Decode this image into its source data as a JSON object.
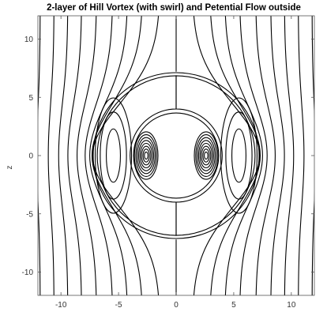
{
  "chart_data": {
    "type": "contour",
    "title": "2-layer of Hill Vortex (with swirl) and Petential Flow outside",
    "xlabel": "",
    "ylabel": "z",
    "xlim": [
      -12,
      12
    ],
    "ylim": [
      -12,
      12
    ],
    "xticks": [
      -10,
      -5,
      0,
      5,
      10
    ],
    "yticks": [
      10,
      5,
      0,
      -5,
      -10
    ],
    "grid": false,
    "legend": "none",
    "boundaries": {
      "outer_sphere_radius": 7.2,
      "inner_sphere_radius": 3.7
    },
    "vortex_centers": [
      [
        -2.6,
        0
      ],
      [
        2.6,
        0
      ]
    ],
    "outer_streamline_x_at_far_field": [
      -11.8,
      -10.6,
      -9.4,
      -8.2,
      -6.9,
      -5.5,
      -4.2,
      -2.9,
      -1.4,
      0,
      1.4,
      2.9,
      4.2,
      5.5,
      6.9,
      8.2,
      9.4,
      10.6,
      11.8
    ],
    "outer_streamline_x_at_z0": [
      -12.1,
      -11.1,
      -10.2,
      -9.4,
      -8.6,
      -7.9,
      -7.5,
      -7.3,
      -7.25,
      0,
      7.25,
      7.3,
      7.5,
      7.9,
      8.6,
      9.4,
      10.2,
      11.1,
      12.1
    ],
    "inner_vortex_level_radii": [
      0.25,
      0.45,
      0.65,
      0.85,
      1.05,
      1.25,
      1.45,
      1.65
    ],
    "outer_ring_lobe_levels": [
      0.35,
      0.65,
      0.9
    ],
    "line_color": "#000000"
  }
}
